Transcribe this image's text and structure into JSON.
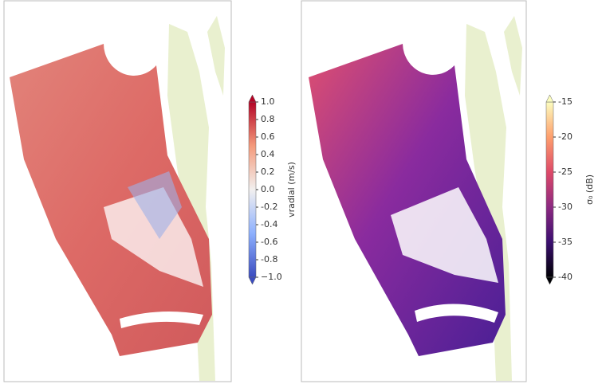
{
  "chart_data": [
    {
      "type": "map",
      "colorbar": {
        "label": "vradial (m/s)",
        "clim": [
          -1,
          1
        ],
        "cticks": [
          {
            "value": -1,
            "label": "−1.0"
          },
          -0.8,
          -0.6,
          -0.4,
          -0.2,
          {
            "value": 0,
            "label": "0.0"
          },
          0.2,
          0.4,
          0.6,
          0.8,
          {
            "value": 1,
            "label": "1.0"
          }
        ],
        "colors": [
          "#3b4cc0",
          "#8db0fe",
          "#f2f0ef",
          "#f49a7b",
          "#b40426"
        ]
      }
    },
    {
      "type": "map",
      "colorbar": {
        "label": "σ₀ (dB)",
        "clim": [
          -40,
          -15
        ],
        "cticks": [
          -40,
          -35,
          -30,
          -25,
          -20,
          -15
        ],
        "colors": [
          "#000004",
          "#3b0f70",
          "#8c2981",
          "#de4968",
          "#fe9f6d",
          "#fcfdbf"
        ]
      }
    }
  ]
}
